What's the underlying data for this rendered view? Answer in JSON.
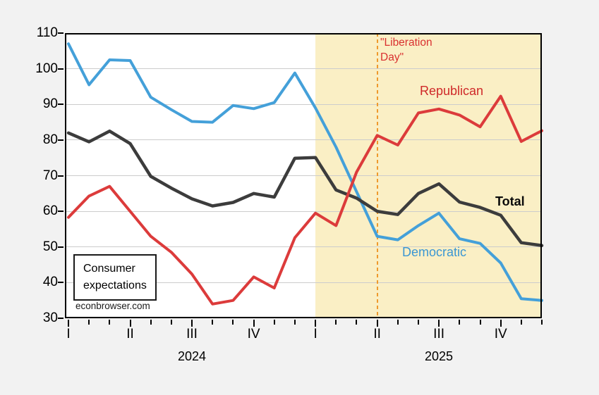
{
  "chart_data": {
    "type": "line",
    "title_lines": [
      "Consumer",
      "expectations"
    ],
    "watermark": "econbrowser.com",
    "ylim": [
      30,
      110
    ],
    "yticks": [
      110,
      100,
      90,
      80,
      70,
      60,
      50,
      40,
      30
    ],
    "grid": "horizontal",
    "x_categories": [
      "2024-01",
      "2024-02",
      "2024-03",
      "2024-04",
      "2024-05",
      "2024-06",
      "2024-07",
      "2024-08",
      "2024-09",
      "2024-10",
      "2024-11",
      "2024-12",
      "2025-01",
      "2025-02",
      "2025-03",
      "2025-04",
      "2025-05",
      "2025-06",
      "2025-07",
      "2025-08",
      "2025-09",
      "2025-10",
      "2025-11",
      "2025-12"
    ],
    "x_axis": {
      "quarters": [
        {
          "label": "I",
          "index": 0
        },
        {
          "label": "II",
          "index": 3
        },
        {
          "label": "III",
          "index": 6
        },
        {
          "label": "IV",
          "index": 9
        },
        {
          "label": "I",
          "index": 12
        },
        {
          "label": "II",
          "index": 15
        },
        {
          "label": "III",
          "index": 18
        },
        {
          "label": "IV",
          "index": 21
        }
      ],
      "year_labels": [
        "2024",
        "2025"
      ],
      "minor_ticks": "monthly"
    },
    "series": [
      {
        "name": "Democratic",
        "color": "#44A0D9",
        "label_color": "#3B97D3",
        "width": 4,
        "values": [
          107,
          95.5,
          102.5,
          102.3,
          92,
          88.5,
          85.2,
          85,
          89.7,
          88.8,
          90.5,
          98.8,
          89,
          78,
          65.5,
          53,
          52,
          56,
          59.5,
          52.3,
          51,
          45.5,
          35.5,
          35
        ]
      },
      {
        "name": "Republican",
        "color": "#DC3B3B",
        "label_color": "#CF2929",
        "width": 4,
        "values": [
          58.3,
          64.3,
          67,
          60,
          53,
          48.5,
          42.4,
          34,
          35,
          41.6,
          38.5,
          52.6,
          59.5,
          56,
          71,
          81.3,
          78.6,
          87.6,
          88.7,
          87,
          83.7,
          92.3,
          79.6,
          82.6
        ]
      },
      {
        "name": "Total",
        "color": "#3C3C3C",
        "label_color": "#0A0A0A",
        "width": 4.5,
        "values": [
          82,
          79.5,
          82.5,
          79,
          69.8,
          66.5,
          63.5,
          61.5,
          62.5,
          65,
          64,
          74.9,
          75.1,
          66,
          63.7,
          60,
          59.1,
          65,
          67.7,
          62.6,
          61.1,
          58.9,
          51.2,
          50.4
        ]
      }
    ],
    "draw_order": [
      0,
      2,
      1
    ],
    "shaded_region": {
      "start_index": 12,
      "end_index": 23,
      "color": "#FAEFC5"
    },
    "vline": {
      "index": 15,
      "color": "#EF9A2D",
      "style": "dashed",
      "label_lines": [
        "\"Liberation",
        "Day\""
      ],
      "label_color": "#D93030"
    },
    "colors": {
      "background": "#F2F2F2",
      "plot_background": "#FFFFFF",
      "gridline": "#CCCCCC",
      "axis": "#000000"
    }
  }
}
